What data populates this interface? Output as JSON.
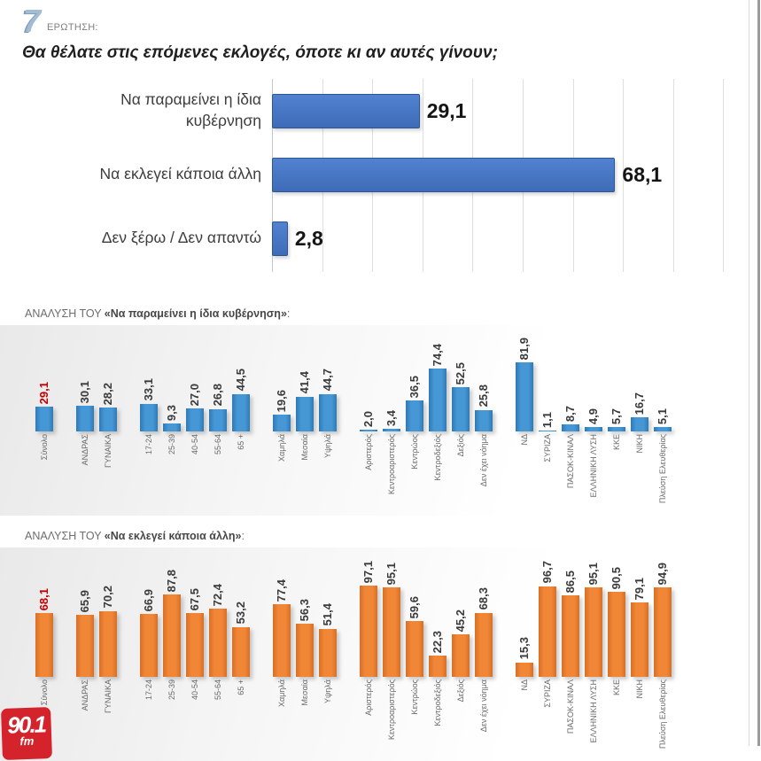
{
  "header": {
    "question_number": "7",
    "question_label": "ΕΡΩΤΗΣΗ:",
    "question_title": "Θα θέλατε στις επόμενες εκλογές, όποτε κι αν αυτές γίνουν;"
  },
  "sections": {
    "analysis_same": {
      "prefix": "ΑΝΑΛΥΣΗ ΤΟΥ ",
      "quoted": "«Να παραμείνει η ίδια κυβέρνηση»",
      "suffix": ":"
    },
    "analysis_other": {
      "prefix": "ΑΝΑΛΥΣΗ ΤΟΥ ",
      "quoted": "«Να εκλεγεί κάποια άλλη»",
      "suffix": ":"
    }
  },
  "logo": {
    "number": "90.1",
    "suffix": "fm"
  },
  "colors": {
    "main_bar_blue": "#4472C4",
    "analysis_blue": "#3F8FD2",
    "analysis_orange": "#ED7D31",
    "highlight_red": "#C00000",
    "logo_red": "#D4232B"
  },
  "chart_data": [
    {
      "type": "bar",
      "orientation": "horizontal",
      "title": "Θα θέλατε στις επόμενες εκλογές, όποτε κι αν αυτές γίνουν;",
      "categories": [
        "Να παραμείνει η ίδια κυβέρνηση",
        "Να εκλεγεί κάποια άλλη",
        "Δεν ξέρω / Δεν απαντώ"
      ],
      "values": [
        29.1,
        68.1,
        2.8
      ],
      "xlim": [
        0,
        94
      ],
      "grid": true,
      "bar_color": "#4472C4"
    },
    {
      "type": "bar",
      "orientation": "vertical",
      "title": "ΑΝΑΛΥΣΗ ΤΟΥ «Να παραμείνει η ίδια κυβέρνηση»:",
      "bar_color": "#3F8FD2",
      "ylim": [
        0,
        100
      ],
      "highlight_category": "Σύνολο",
      "groups": [
        {
          "name": "total",
          "categories": [
            "Σύνολο"
          ],
          "values": [
            29.1
          ]
        },
        {
          "name": "gender",
          "categories": [
            "ΑΝΔΡΑΣ",
            "ΓΥΝΑΙΚΑ"
          ],
          "values": [
            30.1,
            28.2
          ]
        },
        {
          "name": "age",
          "categories": [
            "17-24",
            "25-39",
            "40-54",
            "55-64",
            "65 +"
          ],
          "values": [
            33.1,
            9.3,
            27.0,
            26.8,
            44.5
          ]
        },
        {
          "name": "class",
          "categories": [
            "Χαμηλά",
            "Μεσαία",
            "Υψηλά"
          ],
          "values": [
            19.6,
            41.4,
            44.7
          ]
        },
        {
          "name": "ideology",
          "categories": [
            "Αριστερός",
            "Κεντροαριστερός",
            "Κεντρώος",
            "Κεντροδεξιός",
            "Δεξιός",
            "Δεν έχει νόημα"
          ],
          "values": [
            2.0,
            3.4,
            36.5,
            74.4,
            52.5,
            25.8
          ]
        },
        {
          "name": "party",
          "categories": [
            "ΝΔ",
            "ΣΥΡΙΖΑ",
            "ΠΑΣΟΚ-ΚΙΝΑΛ",
            "ΕΛΛΗΝΙΚΗ ΛΥΣΗ",
            "ΚΚΕ",
            "ΝΙΚΗ",
            "Πλεύση Ελευθερίας"
          ],
          "values": [
            81.9,
            1.1,
            8.7,
            4.9,
            5.7,
            16.7,
            5.1
          ]
        }
      ]
    },
    {
      "type": "bar",
      "orientation": "vertical",
      "title": "ΑΝΑΛΥΣΗ ΤΟΥ «Να εκλεγεί κάποια άλλη»:",
      "bar_color": "#ED7D31",
      "ylim": [
        0,
        100
      ],
      "highlight_category": "Σύνολο",
      "groups": [
        {
          "name": "total",
          "categories": [
            "Σύνολο"
          ],
          "values": [
            68.1
          ]
        },
        {
          "name": "gender",
          "categories": [
            "ΑΝΔΡΑΣ",
            "ΓΥΝΑΙΚΑ"
          ],
          "values": [
            65.9,
            70.2
          ]
        },
        {
          "name": "age",
          "categories": [
            "17-24",
            "25-39",
            "40-54",
            "55-64",
            "65 +"
          ],
          "values": [
            66.9,
            87.8,
            67.5,
            72.4,
            53.2
          ]
        },
        {
          "name": "class",
          "categories": [
            "Χαμηλά",
            "Μεσαία",
            "Υψηλά"
          ],
          "values": [
            77.4,
            56.3,
            51.4
          ]
        },
        {
          "name": "ideology",
          "categories": [
            "Αριστερός",
            "Κεντροαριστερός",
            "Κεντρώος",
            "Κεντροδεξιός",
            "Δεξιός",
            "Δεν έχει νόημα"
          ],
          "values": [
            97.1,
            95.1,
            59.6,
            22.3,
            45.2,
            68.3
          ]
        },
        {
          "name": "party",
          "categories": [
            "ΝΔ",
            "ΣΥΡΙΖΑ",
            "ΠΑΣΟΚ-ΚΙΝΑΛ",
            "ΕΛΛΗΝΙΚΗ ΛΥΣΗ",
            "ΚΚΕ",
            "ΝΙΚΗ",
            "Πλεύση Ελευθερίας"
          ],
          "values": [
            15.3,
            96.7,
            86.5,
            95.1,
            90.5,
            79.1,
            94.9
          ]
        }
      ]
    }
  ]
}
